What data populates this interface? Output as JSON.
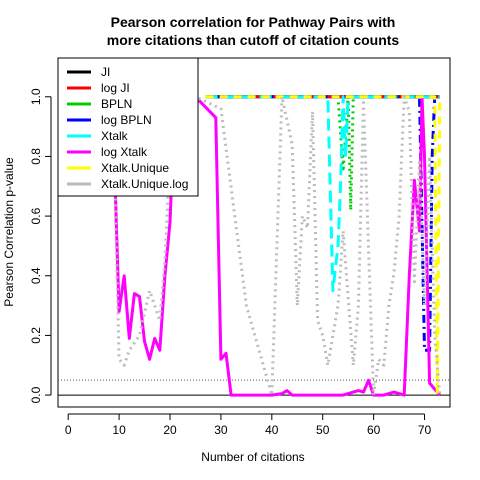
{
  "chart_data": {
    "type": "line",
    "title_line1": "Pearson correlation for Pathway Pairs with",
    "title_line2": "more citations than cutoff of citation counts",
    "xlabel": "Number of citations",
    "ylabel": "Pearson Correlation p-value",
    "xlim": [
      -2,
      75
    ],
    "ylim": [
      -0.04,
      1.13
    ],
    "xticks": [
      0,
      10,
      20,
      30,
      40,
      50,
      60,
      70
    ],
    "yticks": [
      0.0,
      0.2,
      0.4,
      0.6,
      0.8,
      1.0
    ],
    "xtick_labels": [
      "0",
      "10",
      "20",
      "30",
      "40",
      "50",
      "60",
      "70"
    ],
    "ytick_labels": [
      "0.0",
      "0.2",
      "0.4",
      "0.6",
      "0.8",
      "1.0"
    ],
    "reference_lines": [
      {
        "y": 0.05,
        "style": "dotted",
        "color": "#555555"
      },
      {
        "y": 0.0,
        "style": "solid",
        "color": "#000000"
      }
    ],
    "legend": {
      "placement": "top-left"
    },
    "series": [
      {
        "name": "JI",
        "color": "#000000",
        "dash": "solid",
        "x": [
          27,
          73
        ],
        "y": [
          1.0,
          1.0
        ]
      },
      {
        "name": "log JI",
        "color": "#ff0000",
        "dash": "solid",
        "x": [
          27,
          73
        ],
        "y": [
          1.0,
          1.0
        ]
      },
      {
        "name": "BPLN",
        "color": "#00cc00",
        "dash": "dotted",
        "x": [
          27,
          53,
          54,
          55,
          55.5,
          56,
          57,
          73
        ],
        "y": [
          1.0,
          1.0,
          0.75,
          1.0,
          0.62,
          1.0,
          1.0,
          1.0
        ]
      },
      {
        "name": "log BPLN",
        "color": "#0000ff",
        "dash": "dashdot",
        "x": [
          27,
          69,
          70,
          71,
          71.5,
          72,
          72.5,
          73
        ],
        "y": [
          1.0,
          1.0,
          0.15,
          0.15,
          0.8,
          1.0,
          1.0,
          1.0
        ]
      },
      {
        "name": "Xtalk",
        "color": "#00ffff",
        "dash": "longdash",
        "x": [
          27,
          51,
          52,
          53,
          53.5,
          54,
          54.5,
          55,
          56,
          73
        ],
        "y": [
          1.0,
          1.0,
          0.35,
          0.5,
          0.7,
          1.0,
          0.8,
          1.0,
          1.0,
          1.0
        ]
      },
      {
        "name": "log Xtalk",
        "color": "#ff00ff",
        "dash": "solid",
        "x": [
          8,
          9,
          10,
          10.5,
          11,
          12,
          13,
          14,
          15,
          16,
          17,
          18,
          19,
          20,
          21,
          25,
          29,
          30,
          31,
          32,
          40,
          42,
          43,
          44,
          50,
          52,
          54,
          56,
          57,
          58,
          59,
          60,
          62,
          64,
          66,
          67,
          68,
          69,
          69.5,
          70,
          71,
          72,
          73
        ],
        "y": [
          1.0,
          0.82,
          0.28,
          0.34,
          0.4,
          0.19,
          0.34,
          0.33,
          0.18,
          0.12,
          0.19,
          0.15,
          0.4,
          0.58,
          1.0,
          1.0,
          0.93,
          0.12,
          0.14,
          0.0,
          0.0,
          0.005,
          0.015,
          0.0,
          0.0,
          0.0,
          0.0,
          0.01,
          0.015,
          0.01,
          0.05,
          0.0,
          0.0,
          0.01,
          0.0,
          0.4,
          0.72,
          0.55,
          1.0,
          0.8,
          0.04,
          0.02,
          0.0
        ]
      },
      {
        "name": "Xtalk.Unique",
        "color": "#ffff00",
        "dash": "dashed",
        "x": [
          27,
          72,
          72.5,
          73
        ],
        "y": [
          1.0,
          1.0,
          0.0,
          1.0
        ]
      },
      {
        "name": "Xtalk.Unique.log",
        "color": "#bbbbbb",
        "dash": "dotted",
        "x": [
          8,
          9,
          10,
          11,
          12,
          14,
          16,
          18,
          19,
          20,
          21,
          25,
          30,
          35,
          40,
          42,
          44,
          45,
          46,
          47,
          48,
          49,
          50,
          51,
          53,
          54,
          56,
          57,
          58,
          60,
          61,
          62,
          63,
          64,
          65,
          66,
          67,
          68,
          69,
          70,
          71,
          72,
          73
        ],
        "y": [
          0.98,
          0.82,
          0.12,
          0.1,
          0.15,
          0.2,
          0.35,
          0.25,
          0.45,
          0.8,
          1.0,
          1.0,
          0.96,
          0.3,
          0.0,
          1.0,
          0.84,
          0.3,
          0.6,
          0.56,
          0.95,
          0.25,
          0.2,
          0.1,
          0.3,
          0.55,
          0.1,
          0.3,
          0.98,
          0.0,
          0.12,
          0.1,
          0.3,
          0.41,
          0.6,
          1.0,
          0.95,
          0.38,
          0.78,
          0.3,
          0.8,
          0.2,
          0.0
        ]
      }
    ]
  }
}
